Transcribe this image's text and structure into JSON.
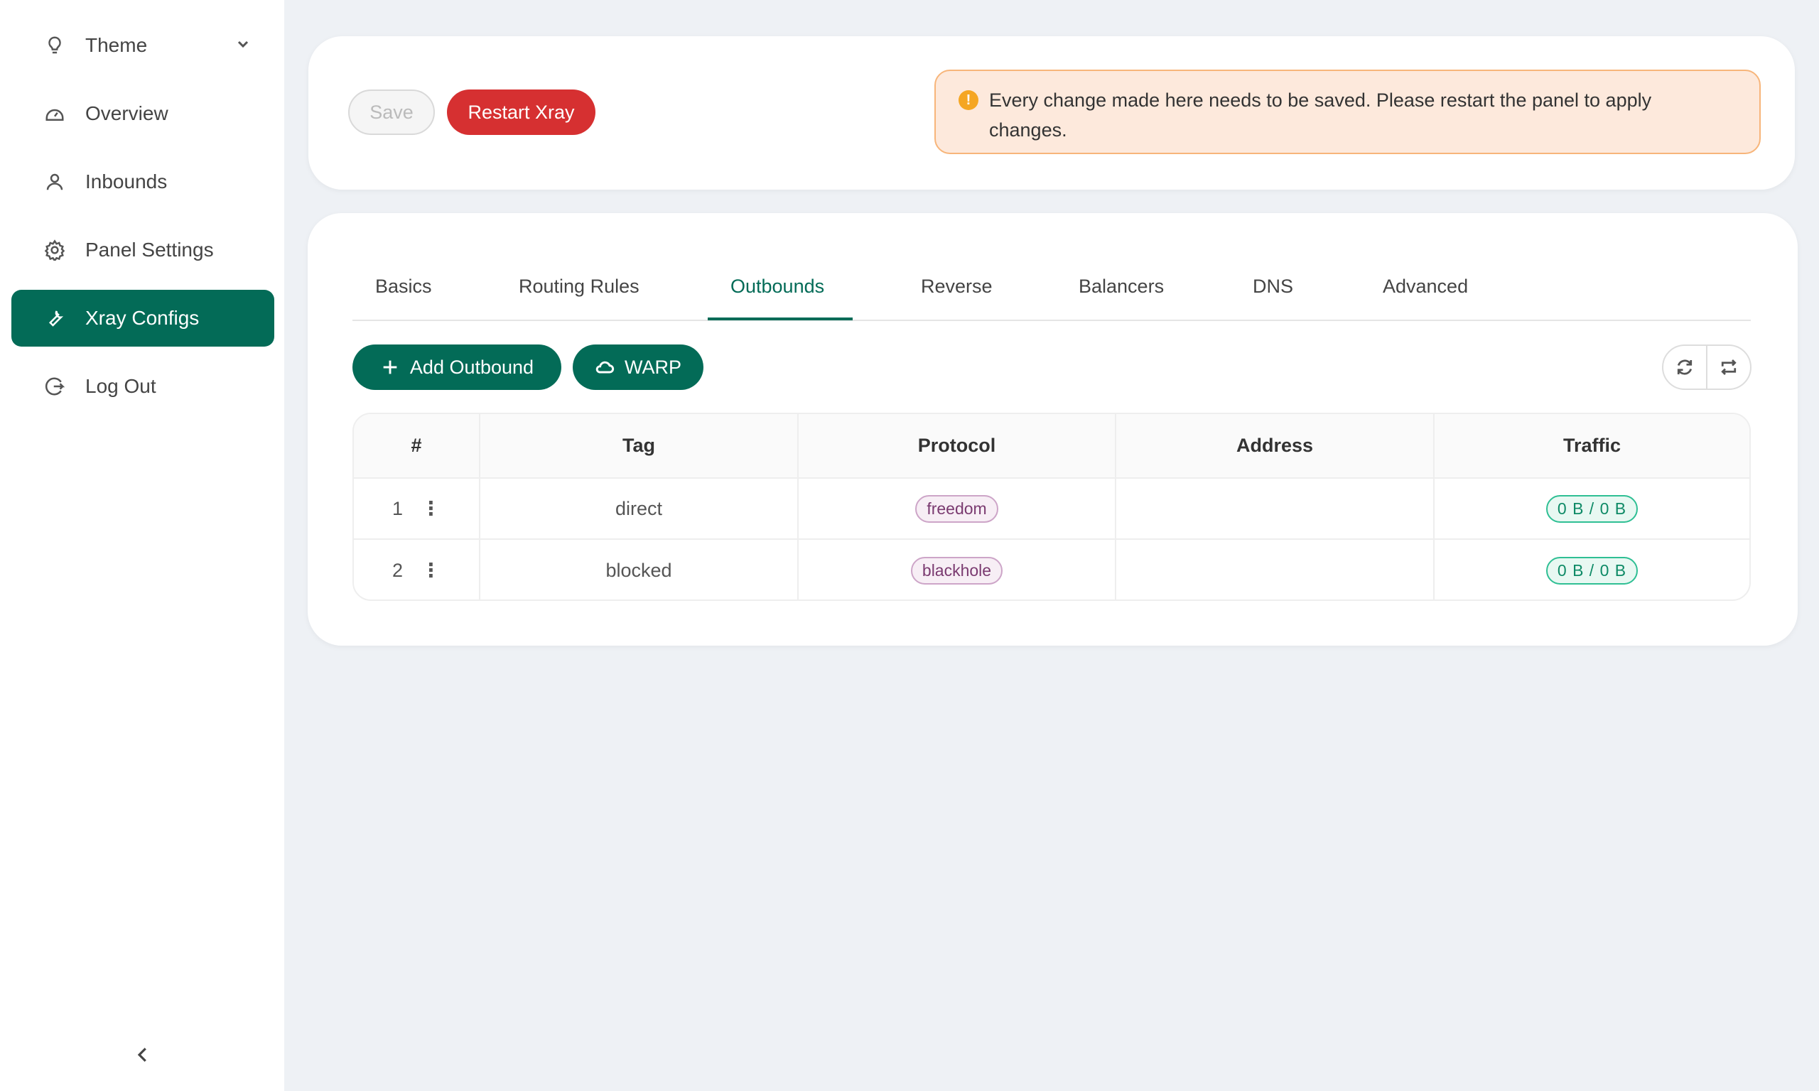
{
  "sidebar": {
    "items": [
      {
        "label": "Theme",
        "icon": "bulb-icon"
      },
      {
        "label": "Overview",
        "icon": "dashboard-icon"
      },
      {
        "label": "Inbounds",
        "icon": "user-icon"
      },
      {
        "label": "Panel Settings",
        "icon": "gear-icon"
      },
      {
        "label": "Xray Configs",
        "icon": "wrench-icon",
        "active": true
      },
      {
        "label": "Log Out",
        "icon": "logout-icon"
      }
    ]
  },
  "toolbar": {
    "save_label": "Save",
    "restart_label": "Restart Xray"
  },
  "alert": {
    "text": "Every change made here needs to be saved. Please restart the panel to apply changes."
  },
  "tabs": [
    "Basics",
    "Routing Rules",
    "Outbounds",
    "Reverse",
    "Balancers",
    "DNS",
    "Advanced"
  ],
  "active_tab": "Outbounds",
  "actions": {
    "add_label": "Add Outbound",
    "warp_label": "WARP"
  },
  "table": {
    "headers": [
      "#",
      "Tag",
      "Protocol",
      "Address",
      "Traffic"
    ],
    "rows": [
      {
        "num": "1",
        "tag": "direct",
        "protocol": "freedom",
        "address": "",
        "traffic": "0 B / 0 B"
      },
      {
        "num": "2",
        "tag": "blocked",
        "protocol": "blackhole",
        "address": "",
        "traffic": "0 B / 0 B"
      }
    ]
  },
  "colors": {
    "accent": "#036b57",
    "danger": "#d63031",
    "warning": "#f5a623"
  }
}
